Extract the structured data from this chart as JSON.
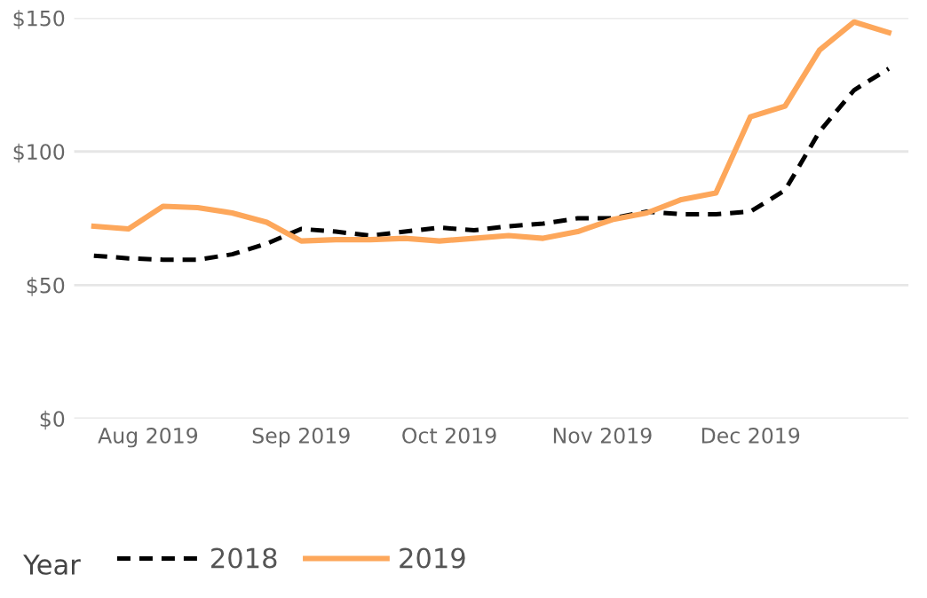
{
  "chart_data": {
    "type": "line",
    "x": [
      "2019-07-21",
      "2019-07-28",
      "2019-08-04",
      "2019-08-11",
      "2019-08-18",
      "2019-08-25",
      "2019-09-01",
      "2019-09-08",
      "2019-09-15",
      "2019-09-22",
      "2019-09-29",
      "2019-10-06",
      "2019-10-13",
      "2019-10-20",
      "2019-10-27",
      "2019-11-03",
      "2019-11-10",
      "2019-11-17",
      "2019-11-24",
      "2019-12-01",
      "2019-12-08",
      "2019-12-15",
      "2019-12-22",
      "2019-12-29"
    ],
    "series": [
      {
        "name": "2018",
        "color": "#000000",
        "line_style": "dashed",
        "values": [
          61,
          60,
          59.5,
          59.5,
          61.5,
          65.5,
          71,
          70,
          68.5,
          70,
          71.5,
          70.5,
          72,
          73,
          75,
          75,
          77.5,
          76.5,
          76.5,
          77.5,
          85.5,
          107.5,
          123,
          131
        ]
      },
      {
        "name": "2019",
        "color": "#fda75b",
        "line_style": "solid",
        "values": [
          72,
          71,
          79.5,
          79,
          77,
          73.5,
          66.5,
          67,
          67,
          67.5,
          66.5,
          67.5,
          68.5,
          67.5,
          70,
          74.5,
          77,
          82,
          84.5,
          113,
          117,
          138,
          148.5,
          144.5
        ]
      }
    ],
    "xlim": [
      "2019-07-17",
      "2020-01-02"
    ],
    "xticks": [
      {
        "value": "2019-08-01",
        "label": "Aug 2019"
      },
      {
        "value": "2019-09-01",
        "label": "Sep 2019"
      },
      {
        "value": "2019-10-01",
        "label": "Oct 2019"
      },
      {
        "value": "2019-11-01",
        "label": "Nov 2019"
      },
      {
        "value": "2019-12-01",
        "label": "Dec 2019"
      }
    ],
    "ylim": [
      0,
      150
    ],
    "yticks": [
      {
        "value": 0,
        "label": "$0"
      },
      {
        "value": 50,
        "label": "$50"
      },
      {
        "value": 100,
        "label": "$100"
      },
      {
        "value": 150,
        "label": "$150"
      }
    ],
    "grid": "y",
    "legend": "bottom left",
    "legend_title": "Year",
    "marker": "none"
  }
}
